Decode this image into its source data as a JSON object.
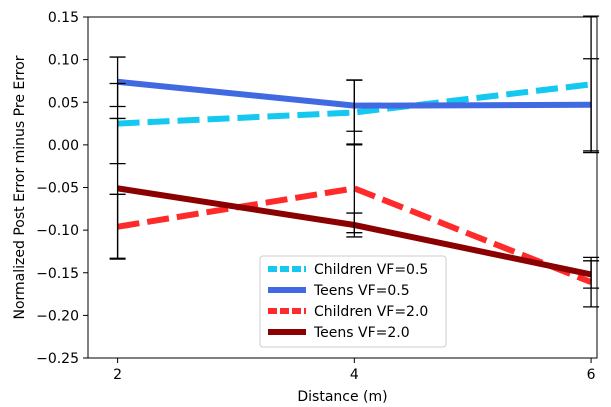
{
  "chart_data": {
    "type": "line",
    "xlabel": "Distance (m)",
    "ylabel": "Normalized Post Error minus Pre Error",
    "xlim": [
      1.75,
      6.05
    ],
    "ylim": [
      -0.25,
      0.15
    ],
    "xticks": [
      2,
      4,
      6
    ],
    "xtick_labels": [
      "2",
      "4",
      "6"
    ],
    "yticks": [
      -0.25,
      -0.2,
      -0.15,
      -0.1,
      -0.05,
      0.0,
      0.05,
      0.1,
      0.15
    ],
    "ytick_labels": [
      "−0.25",
      "−0.20",
      "−0.15",
      "−0.10",
      "−0.05",
      "0.00",
      "0.05",
      "0.10",
      "0.15"
    ],
    "grid": false,
    "legend_position": "lower-center",
    "x": [
      2,
      4,
      6
    ],
    "series": [
      {
        "name": "Children VF=0.5",
        "color": "#14c8f0",
        "style": "dashed",
        "values": [
          0.025,
          0.038,
          0.071
        ],
        "err": [
          0.047,
          0.038,
          0.08
        ]
      },
      {
        "name": "Teens VF=0.5",
        "color": "#4169e1",
        "style": "solid",
        "values": [
          0.074,
          0.046,
          0.047
        ],
        "err": [
          0.029,
          0.03,
          0.054
        ]
      },
      {
        "name": "Children VF=2.0",
        "color": "#ff2a2a",
        "style": "dashed",
        "values": [
          -0.096,
          -0.051,
          -0.161
        ],
        "err": [
          0.038,
          0.052,
          0.029
        ]
      },
      {
        "name": "Teens VF=2.0",
        "color": "#8b0000",
        "style": "solid",
        "values": [
          -0.051,
          -0.094,
          -0.152
        ],
        "err": [
          0.082,
          0.014,
          0.016
        ]
      }
    ]
  }
}
